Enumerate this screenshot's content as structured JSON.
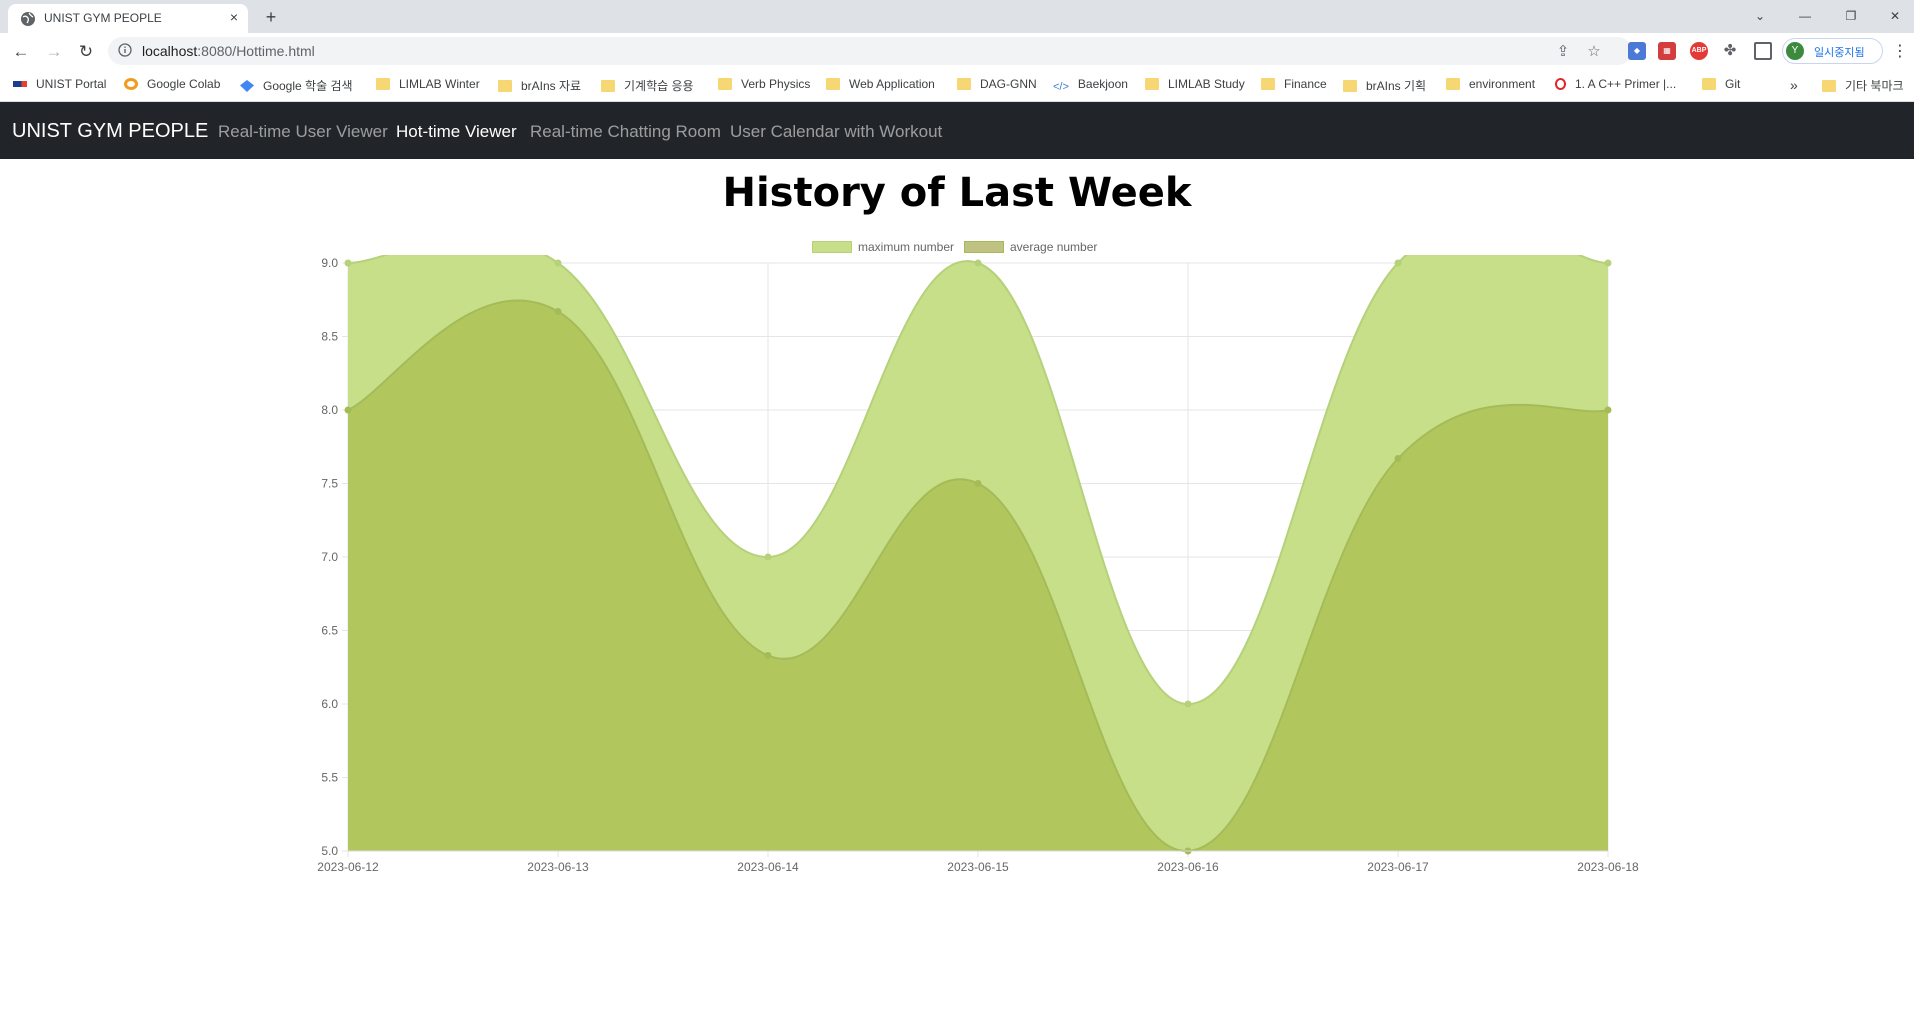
{
  "browser": {
    "tab_title": "UNIST GYM PEOPLE",
    "tab_close": "×",
    "new_tab": "+",
    "url_host": "localhost",
    "url_rest": ":8080/Hottime.html",
    "profile_initial": "Y",
    "profile_label": "일시중지됨",
    "extensions": [
      "ABP"
    ],
    "bookmarks_overflow": "»",
    "bookmarks": [
      {
        "label": "UNIST Portal",
        "icon": "unist-logo-icon"
      },
      {
        "label": "Google Colab",
        "icon": "colab-logo-icon"
      },
      {
        "label": "Google 학술 검색",
        "icon": "scholar-logo-icon"
      },
      {
        "label": "LIMLAB Winter",
        "icon": "folder-icon"
      },
      {
        "label": "brAIns 자료",
        "icon": "folder-icon"
      },
      {
        "label": "기계학습 응용",
        "icon": "folder-icon"
      },
      {
        "label": "Verb Physics",
        "icon": "folder-icon"
      },
      {
        "label": "Web Application",
        "icon": "folder-icon"
      },
      {
        "label": "DAG-GNN",
        "icon": "folder-icon"
      },
      {
        "label": "Baekjoon",
        "icon": "code-icon"
      },
      {
        "label": "LIMLAB Study",
        "icon": "folder-icon"
      },
      {
        "label": "Finance",
        "icon": "folder-icon"
      },
      {
        "label": "brAIns 기획",
        "icon": "folder-icon"
      },
      {
        "label": "environment",
        "icon": "folder-icon"
      },
      {
        "label": "1. A C++ Primer |...",
        "icon": "opera-logo-icon"
      },
      {
        "label": "Git",
        "icon": "folder-icon"
      }
    ],
    "other_bookmarks": "기타 북마크"
  },
  "site": {
    "brand": "UNIST GYM PEOPLE",
    "nav": [
      {
        "label": "Real-time User Viewer",
        "active": false
      },
      {
        "label": "Hot-time Viewer",
        "active": true
      },
      {
        "label": "Real-time Chatting Room",
        "active": false
      },
      {
        "label": "User Calendar with Workout",
        "active": false
      }
    ]
  },
  "page": {
    "title": "History of Last Week"
  },
  "colors": {
    "max_fill": "#c8df8a",
    "max_line": "#b5d17a",
    "avg_fill": "#b1c75e",
    "avg_line": "#a4bb58",
    "grid": "#e5e5e5"
  },
  "chart_data": {
    "type": "area",
    "x": [
      "2023-06-12",
      "2023-06-13",
      "2023-06-14",
      "2023-06-15",
      "2023-06-16",
      "2023-06-17",
      "2023-06-18"
    ],
    "series": [
      {
        "name": "maximum number",
        "values": [
          9,
          9,
          7,
          9,
          6,
          9,
          9
        ]
      },
      {
        "name": "average number",
        "values": [
          8,
          8.67,
          6.33,
          7.5,
          5,
          7.67,
          8
        ]
      }
    ],
    "ylim": [
      5,
      9
    ],
    "yticks": [
      "9.0",
      "8.5",
      "8.0",
      "7.5",
      "7.0",
      "6.5",
      "6.0",
      "5.5",
      "5.0"
    ],
    "grid": true,
    "legend": "top-center",
    "curve": "smooth"
  }
}
